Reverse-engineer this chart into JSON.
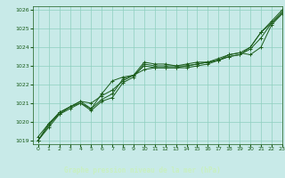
{
  "title": "Graphe pression niveau de la mer (hPa)",
  "bg_color": "#c8eae8",
  "plot_bg_color": "#c8eae8",
  "bottom_bar_color": "#1a5c1a",
  "grid_color": "#8ecfbf",
  "line_color": "#1a5c1a",
  "title_color": "#c8f0c0",
  "xlim": [
    -0.5,
    23
  ],
  "ylim": [
    1018.8,
    1026.2
  ],
  "xticks": [
    0,
    1,
    2,
    3,
    4,
    5,
    6,
    7,
    8,
    9,
    10,
    11,
    12,
    13,
    14,
    15,
    16,
    17,
    18,
    19,
    20,
    21,
    22,
    23
  ],
  "yticks": [
    1019,
    1020,
    1021,
    1022,
    1023,
    1024,
    1025,
    1026
  ],
  "series": [
    {
      "x": [
        0,
        1,
        2,
        3,
        4,
        5,
        6,
        7,
        8,
        9,
        10,
        11,
        12,
        13,
        14,
        15,
        16,
        17,
        18,
        19,
        20,
        21,
        22,
        23
      ],
      "y": [
        1019.0,
        1019.7,
        1020.4,
        1020.7,
        1021.0,
        1020.6,
        1021.1,
        1021.3,
        1022.1,
        1022.4,
        1023.1,
        1023.0,
        1023.0,
        1023.0,
        1023.0,
        1023.1,
        1023.2,
        1023.3,
        1023.5,
        1023.6,
        1023.9,
        1024.5,
        1025.3,
        1025.8
      ]
    },
    {
      "x": [
        0,
        1,
        2,
        3,
        4,
        5,
        6,
        7,
        8,
        9,
        10,
        11,
        12,
        13,
        14,
        15,
        16,
        17,
        18,
        19,
        20,
        21,
        22,
        23
      ],
      "y": [
        1019.0,
        1019.8,
        1020.5,
        1020.8,
        1021.1,
        1021.0,
        1021.4,
        1021.7,
        1022.2,
        1022.5,
        1022.8,
        1022.9,
        1022.9,
        1022.9,
        1022.9,
        1023.0,
        1023.1,
        1023.3,
        1023.5,
        1023.6,
        1024.0,
        1024.8,
        1025.3,
        1025.9
      ]
    },
    {
      "x": [
        0,
        1,
        2,
        3,
        4,
        5,
        6,
        7,
        8,
        9,
        10,
        11,
        12,
        13,
        14,
        15,
        16,
        17,
        18,
        19,
        20,
        21,
        22,
        23
      ],
      "y": [
        1019.0,
        1019.9,
        1020.4,
        1020.8,
        1021.0,
        1020.7,
        1021.5,
        1022.2,
        1022.4,
        1022.5,
        1023.2,
        1023.1,
        1023.1,
        1023.0,
        1023.1,
        1023.2,
        1023.2,
        1023.3,
        1023.6,
        1023.7,
        1023.6,
        1024.0,
        1025.2,
        1025.8
      ]
    },
    {
      "x": [
        0,
        1,
        2,
        3,
        4,
        5,
        6,
        7,
        8,
        9,
        10,
        11,
        12,
        13,
        14,
        15,
        16,
        17,
        18,
        19,
        20,
        21,
        22,
        23
      ],
      "y": [
        1019.2,
        1019.9,
        1020.5,
        1020.8,
        1021.1,
        1020.7,
        1021.2,
        1021.5,
        1022.3,
        1022.5,
        1023.0,
        1022.9,
        1022.9,
        1022.9,
        1023.0,
        1023.1,
        1023.2,
        1023.4,
        1023.6,
        1023.7,
        1024.0,
        1024.8,
        1025.4,
        1026.0
      ]
    }
  ]
}
